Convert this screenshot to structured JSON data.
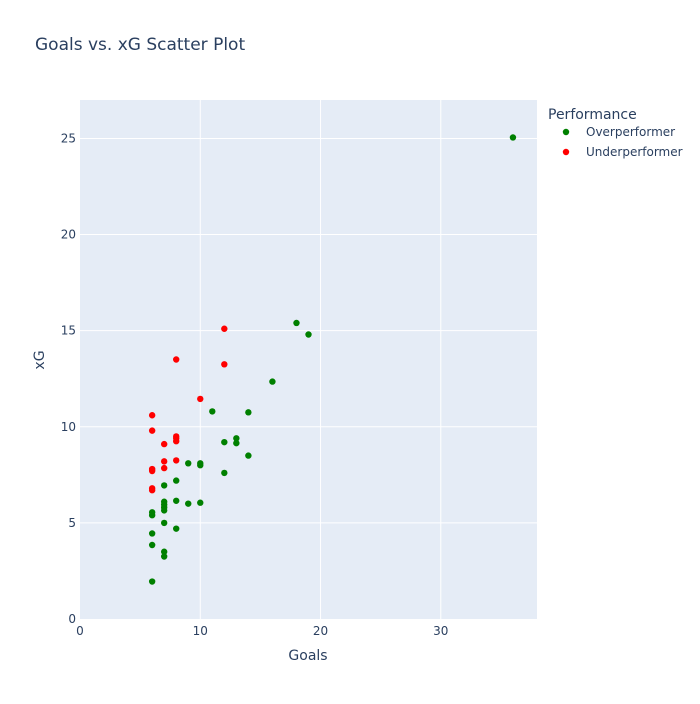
{
  "chart_data": {
    "type": "scatter",
    "title": "Goals vs. xG Scatter Plot",
    "xlabel": "Goals",
    "ylabel": "xG",
    "xlim": [
      0,
      38
    ],
    "ylim": [
      0,
      27
    ],
    "x_ticks": [
      0,
      10,
      20,
      30
    ],
    "y_ticks": [
      0,
      5,
      10,
      15,
      20,
      25
    ],
    "grid": true,
    "legend": {
      "title": "Performance",
      "placement": "top-right-outside"
    },
    "series": [
      {
        "name": "Overperformer",
        "color": "#008000",
        "points": [
          [
            6,
            1.95
          ],
          [
            6,
            3.85
          ],
          [
            6,
            4.45
          ],
          [
            6,
            5.4
          ],
          [
            6,
            5.55
          ],
          [
            7,
            3.25
          ],
          [
            7,
            3.5
          ],
          [
            7,
            5.0
          ],
          [
            7,
            5.65
          ],
          [
            7,
            5.8
          ],
          [
            7,
            5.95
          ],
          [
            7,
            6.1
          ],
          [
            7,
            6.95
          ],
          [
            8,
            4.7
          ],
          [
            8,
            6.15
          ],
          [
            8,
            7.2
          ],
          [
            9,
            6.0
          ],
          [
            9,
            8.1
          ],
          [
            10,
            6.05
          ],
          [
            10,
            8.0
          ],
          [
            10,
            8.1
          ],
          [
            11,
            10.8
          ],
          [
            12,
            7.6
          ],
          [
            12,
            9.2
          ],
          [
            13,
            9.15
          ],
          [
            13,
            9.4
          ],
          [
            14,
            8.5
          ],
          [
            14,
            10.75
          ],
          [
            16,
            12.35
          ],
          [
            18,
            15.4
          ],
          [
            19,
            14.8
          ],
          [
            36,
            25.05
          ]
        ]
      },
      {
        "name": "Underperformer",
        "color": "#ff0000",
        "points": [
          [
            6,
            6.7
          ],
          [
            6,
            6.8
          ],
          [
            6,
            7.7
          ],
          [
            6,
            7.8
          ],
          [
            6,
            9.8
          ],
          [
            6,
            10.6
          ],
          [
            7,
            7.85
          ],
          [
            7,
            8.2
          ],
          [
            7,
            9.1
          ],
          [
            8,
            8.25
          ],
          [
            8,
            9.25
          ],
          [
            8,
            9.4
          ],
          [
            8,
            9.5
          ],
          [
            8,
            13.5
          ],
          [
            10,
            11.45
          ],
          [
            12,
            13.25
          ],
          [
            12,
            15.1
          ]
        ]
      }
    ]
  }
}
